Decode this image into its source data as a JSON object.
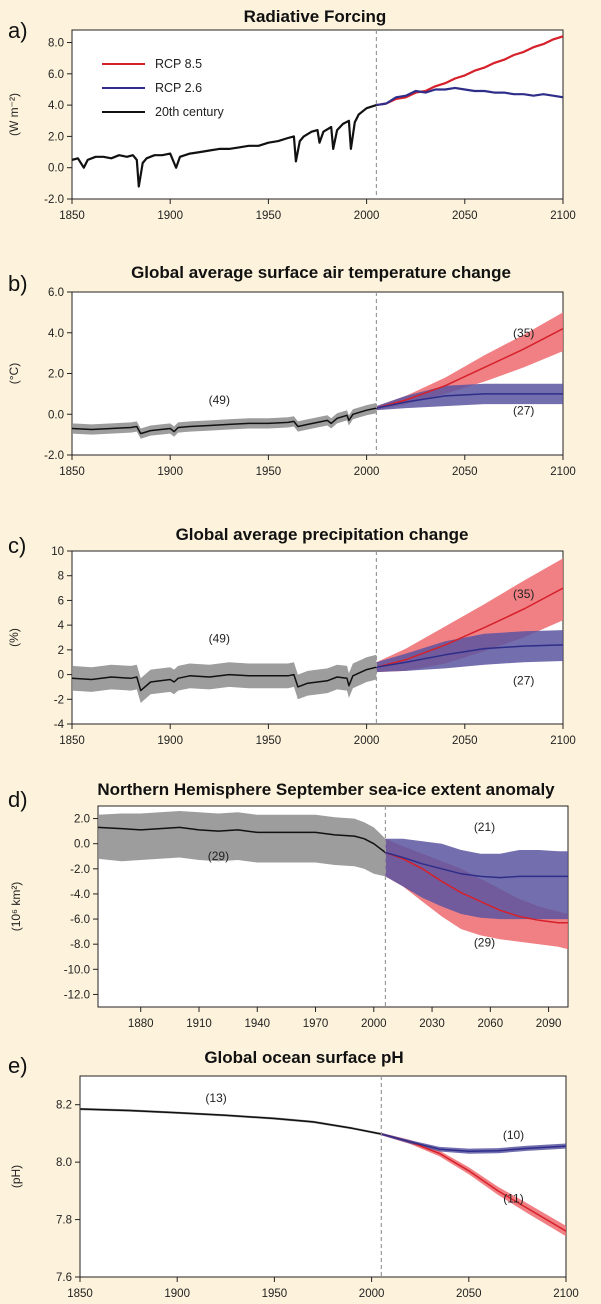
{
  "colors": {
    "background": "#fdf3dc",
    "historical_line": "#111111",
    "historical_band": "#8c8c8c",
    "rcp85_line": "#d6202a",
    "rcp85_band": "#ef6a6e",
    "rcp26_line": "#2e2e8a",
    "rcp26_band": "#5b55a0",
    "divider": "#9a9a9a",
    "plot_area": "#ffffff"
  },
  "legend": {
    "entries": [
      "RCP 8.5",
      "RCP 2.6",
      "20th century"
    ]
  },
  "chart_data": [
    {
      "panel": "a)",
      "type": "line",
      "title": "Radiative Forcing",
      "ylabel": "(W m⁻²)",
      "xlim": [
        1850,
        2100
      ],
      "ylim": [
        -2,
        8.8
      ],
      "xticks": [
        1850,
        1900,
        1950,
        2000,
        2050,
        2100
      ],
      "yticks": [
        -2.0,
        0.0,
        2.0,
        4.0,
        6.0,
        8.0
      ],
      "ytick_labels": [
        "-2.0",
        "0.0",
        "2.0",
        "4.0",
        "6.0",
        "8.0"
      ],
      "divider_x": 2005,
      "series": [
        {
          "key": "hist",
          "name": "20th century",
          "x": [
            1850,
            1853,
            1856,
            1858,
            1862,
            1866,
            1870,
            1874,
            1878,
            1881,
            1883,
            1884,
            1886,
            1888,
            1892,
            1896,
            1900,
            1902,
            1903,
            1905,
            1910,
            1915,
            1920,
            1925,
            1930,
            1935,
            1940,
            1945,
            1950,
            1955,
            1960,
            1963,
            1964,
            1966,
            1968,
            1972,
            1975,
            1976,
            1978,
            1982,
            1983,
            1985,
            1988,
            1991,
            1992,
            1994,
            1996,
            2000,
            2005
          ],
          "y": [
            0.5,
            0.6,
            0.0,
            0.5,
            0.7,
            0.7,
            0.6,
            0.8,
            0.7,
            0.8,
            0.5,
            -1.2,
            0.3,
            0.6,
            0.8,
            0.8,
            0.9,
            0.3,
            0.0,
            0.7,
            0.9,
            1.0,
            1.1,
            1.2,
            1.2,
            1.3,
            1.4,
            1.4,
            1.6,
            1.7,
            1.9,
            2.0,
            0.4,
            1.7,
            2.0,
            2.3,
            2.4,
            1.6,
            2.3,
            2.6,
            1.2,
            2.4,
            2.8,
            3.0,
            1.2,
            2.9,
            3.4,
            3.8,
            4.0
          ]
        },
        {
          "key": "rcp85",
          "name": "RCP 8.5",
          "x": [
            2005,
            2010,
            2015,
            2020,
            2025,
            2030,
            2035,
            2040,
            2045,
            2050,
            2055,
            2060,
            2065,
            2070,
            2075,
            2080,
            2085,
            2090,
            2095,
            2100
          ],
          "y": [
            4.0,
            4.1,
            4.4,
            4.5,
            4.8,
            4.9,
            5.2,
            5.4,
            5.7,
            5.9,
            6.2,
            6.4,
            6.7,
            6.9,
            7.2,
            7.4,
            7.7,
            7.9,
            8.2,
            8.4
          ]
        },
        {
          "key": "rcp26",
          "name": "RCP 2.6",
          "x": [
            2005,
            2010,
            2015,
            2020,
            2025,
            2030,
            2035,
            2040,
            2045,
            2050,
            2055,
            2060,
            2065,
            2070,
            2075,
            2080,
            2085,
            2090,
            2095,
            2100
          ],
          "y": [
            4.0,
            4.1,
            4.5,
            4.6,
            4.9,
            4.8,
            5.0,
            5.0,
            5.1,
            5.0,
            4.9,
            4.9,
            4.8,
            4.8,
            4.7,
            4.7,
            4.6,
            4.7,
            4.6,
            4.5
          ]
        }
      ]
    },
    {
      "panel": "b)",
      "type": "line",
      "title": "Global average surface air temperature change",
      "ylabel": "(°C)",
      "xlim": [
        1850,
        2100
      ],
      "ylim": [
        -2,
        6
      ],
      "xticks": [
        1850,
        1900,
        1950,
        2000,
        2050,
        2100
      ],
      "yticks": [
        -2.0,
        0.0,
        2.0,
        4.0,
        6.0
      ],
      "ytick_labels": [
        "-2.0",
        "0.0",
        "2.0",
        "4.0",
        "6.0"
      ],
      "divider_x": 2005,
      "annotations": [
        {
          "text": "(49)",
          "x": 1925,
          "y": 0.5
        },
        {
          "text": "(35)",
          "x": 2080,
          "y": 3.8
        },
        {
          "text": "(27)",
          "x": 2080,
          "y": 0.0
        }
      ],
      "series": [
        {
          "key": "hist",
          "name": "20th century",
          "band": 0.25,
          "x": [
            1850,
            1860,
            1870,
            1880,
            1883,
            1885,
            1890,
            1900,
            1902,
            1904,
            1910,
            1920,
            1930,
            1940,
            1950,
            1960,
            1963,
            1965,
            1970,
            1975,
            1980,
            1982,
            1985,
            1990,
            1991,
            1993,
            2000,
            2005
          ],
          "y": [
            -0.7,
            -0.75,
            -0.7,
            -0.65,
            -0.6,
            -0.95,
            -0.8,
            -0.7,
            -0.85,
            -0.65,
            -0.6,
            -0.55,
            -0.5,
            -0.45,
            -0.45,
            -0.4,
            -0.35,
            -0.6,
            -0.5,
            -0.4,
            -0.3,
            -0.45,
            -0.2,
            -0.05,
            -0.3,
            0.0,
            0.2,
            0.3
          ]
        },
        {
          "key": "rcp85",
          "name": "RCP 8.5",
          "x": [
            2005,
            2020,
            2040,
            2060,
            2080,
            2100
          ],
          "y": [
            0.3,
            0.7,
            1.4,
            2.3,
            3.2,
            4.2
          ],
          "band_lo": [
            0.2,
            0.5,
            1.0,
            1.6,
            2.3,
            3.1
          ],
          "band_hi": [
            0.4,
            0.9,
            1.8,
            2.9,
            3.9,
            5.0
          ]
        },
        {
          "key": "rcp26",
          "name": "RCP 2.6",
          "x": [
            2005,
            2020,
            2040,
            2060,
            2080,
            2100
          ],
          "y": [
            0.3,
            0.6,
            0.9,
            1.0,
            1.0,
            1.0
          ],
          "band_lo": [
            0.2,
            0.3,
            0.4,
            0.5,
            0.5,
            0.5
          ],
          "band_hi": [
            0.4,
            0.9,
            1.4,
            1.5,
            1.5,
            1.5
          ]
        }
      ]
    },
    {
      "panel": "c)",
      "type": "line",
      "title": "Global average precipitation change",
      "ylabel": "(%)",
      "xlim": [
        1850,
        2100
      ],
      "ylim": [
        -4,
        10
      ],
      "xticks": [
        1850,
        1900,
        1950,
        2000,
        2050,
        2100
      ],
      "yticks": [
        -4,
        -2,
        0,
        2,
        4,
        6,
        8,
        10
      ],
      "ytick_labels": [
        "-4",
        "-2",
        "0",
        "2",
        "4",
        "6",
        "8",
        "10"
      ],
      "divider_x": 2005,
      "annotations": [
        {
          "text": "(49)",
          "x": 1925,
          "y": 2.6
        },
        {
          "text": "(35)",
          "x": 2080,
          "y": 6.2
        },
        {
          "text": "(27)",
          "x": 2080,
          "y": -0.8
        }
      ],
      "series": [
        {
          "key": "hist",
          "name": "20th century",
          "band": 1.0,
          "x": [
            1850,
            1860,
            1870,
            1880,
            1883,
            1885,
            1890,
            1900,
            1902,
            1904,
            1910,
            1920,
            1930,
            1940,
            1950,
            1960,
            1963,
            1965,
            1970,
            1980,
            1985,
            1990,
            1991,
            1993,
            2000,
            2005
          ],
          "y": [
            -0.3,
            -0.4,
            -0.2,
            -0.3,
            -0.2,
            -1.3,
            -0.6,
            -0.4,
            -0.6,
            -0.3,
            -0.1,
            -0.2,
            0.0,
            -0.1,
            -0.1,
            -0.1,
            0.0,
            -1.0,
            -0.7,
            -0.5,
            -0.2,
            -0.3,
            -0.9,
            -0.1,
            0.4,
            0.6
          ]
        },
        {
          "key": "rcp85",
          "name": "RCP 8.5",
          "x": [
            2005,
            2020,
            2040,
            2060,
            2080,
            2100
          ],
          "y": [
            0.6,
            1.2,
            2.4,
            3.8,
            5.3,
            7.0
          ],
          "band_lo": [
            0.2,
            0.3,
            0.9,
            1.9,
            3.0,
            4.4
          ],
          "band_hi": [
            1.0,
            2.1,
            3.9,
            5.7,
            7.6,
            9.4
          ]
        },
        {
          "key": "rcp26",
          "name": "RCP 2.6",
          "x": [
            2005,
            2020,
            2040,
            2060,
            2080,
            2100
          ],
          "y": [
            0.6,
            1.0,
            1.6,
            2.1,
            2.3,
            2.4
          ],
          "band_lo": [
            0.2,
            0.3,
            0.5,
            0.8,
            1.0,
            1.1
          ],
          "band_hi": [
            1.0,
            1.7,
            2.7,
            3.3,
            3.5,
            3.6
          ]
        }
      ]
    },
    {
      "panel": "d)",
      "type": "line",
      "title": "Northern Hemisphere September sea-ice extent anomaly",
      "ylabel": "(10⁶ km²)",
      "xlim": [
        1858,
        2100
      ],
      "ylim": [
        -13,
        3
      ],
      "xticks": [
        1880,
        1910,
        1940,
        1970,
        2000,
        2030,
        2060,
        2090
      ],
      "yticks": [
        -12,
        -10,
        -8,
        -6,
        -4,
        -2,
        0,
        2
      ],
      "ytick_labels": [
        "-12.0",
        "-10.0",
        "-8.0",
        "-6.0",
        "-4.0",
        "-2.0",
        "0.0",
        "2.0"
      ],
      "divider_x": 2006,
      "annotations": [
        {
          "text": "(29)",
          "x": 1920,
          "y": -1.3
        },
        {
          "text": "(21)",
          "x": 2057,
          "y": 1.0
        },
        {
          "text": "(29)",
          "x": 2057,
          "y": -8.2
        }
      ],
      "series": [
        {
          "key": "hist",
          "name": "20th century",
          "x": [
            1858,
            1870,
            1880,
            1890,
            1900,
            1910,
            1920,
            1930,
            1940,
            1950,
            1960,
            1970,
            1980,
            1990,
            1995,
            2000,
            2006
          ],
          "y": [
            1.3,
            1.2,
            1.1,
            1.2,
            1.3,
            1.1,
            1.0,
            1.1,
            0.9,
            0.9,
            0.9,
            0.9,
            0.7,
            0.6,
            0.4,
            0.0,
            -0.7
          ],
          "band_lo": [
            -1.2,
            -1.4,
            -1.3,
            -1.2,
            -1.1,
            -1.3,
            -1.4,
            -1.3,
            -1.5,
            -1.5,
            -1.5,
            -1.5,
            -1.7,
            -1.8,
            -2.0,
            -2.4,
            -2.6
          ],
          "band_hi": [
            2.3,
            2.4,
            2.4,
            2.5,
            2.6,
            2.5,
            2.4,
            2.5,
            2.3,
            2.3,
            2.3,
            2.3,
            2.1,
            2.0,
            1.7,
            1.3,
            0.4
          ]
        },
        {
          "key": "rcp85",
          "name": "RCP 8.5",
          "x": [
            2006,
            2015,
            2025,
            2035,
            2045,
            2055,
            2065,
            2075,
            2085,
            2095,
            2100
          ],
          "y": [
            -0.7,
            -1.2,
            -2.0,
            -3.0,
            -3.9,
            -4.6,
            -5.3,
            -5.8,
            -6.1,
            -6.3,
            -6.3
          ],
          "band_lo": [
            -2.6,
            -3.4,
            -4.6,
            -5.8,
            -6.8,
            -7.3,
            -7.6,
            -7.8,
            -8.0,
            -8.2,
            -8.4
          ],
          "band_hi": [
            0.4,
            -0.2,
            -0.8,
            -1.4,
            -2.0,
            -2.8,
            -3.6,
            -4.4,
            -5.0,
            -5.4,
            -5.6
          ]
        },
        {
          "key": "rcp26",
          "name": "RCP 2.6",
          "x": [
            2006,
            2015,
            2025,
            2035,
            2045,
            2055,
            2065,
            2075,
            2085,
            2095,
            2100
          ],
          "y": [
            -0.7,
            -1.1,
            -1.6,
            -2.0,
            -2.4,
            -2.6,
            -2.7,
            -2.6,
            -2.6,
            -2.6,
            -2.6
          ],
          "band_lo": [
            -2.6,
            -3.4,
            -4.3,
            -5.0,
            -5.6,
            -5.9,
            -6.0,
            -6.0,
            -6.0,
            -6.0,
            -6.0
          ],
          "band_hi": [
            0.4,
            0.4,
            0.2,
            0.0,
            -0.5,
            -0.8,
            -0.8,
            -0.5,
            -0.5,
            -0.6,
            -0.6
          ]
        }
      ]
    },
    {
      "panel": "e)",
      "type": "line",
      "title": "Global ocean surface pH",
      "ylabel": "(pH)",
      "xlim": [
        1850,
        2100
      ],
      "ylim": [
        7.6,
        8.3
      ],
      "xticks": [
        1850,
        1900,
        1950,
        2000,
        2050,
        2100
      ],
      "yticks": [
        7.6,
        7.8,
        8.0,
        8.2
      ],
      "ytick_labels": [
        "7.6",
        "7.8",
        "8.0",
        "8.2"
      ],
      "divider_x": 2005,
      "annotations": [
        {
          "text": "(13)",
          "x": 1920,
          "y": 8.21
        },
        {
          "text": "(10)",
          "x": 2073,
          "y": 8.08
        },
        {
          "text": "(11)",
          "x": 2073,
          "y": 7.86
        }
      ],
      "series": [
        {
          "key": "hist",
          "name": "20th century",
          "band": 0.004,
          "x": [
            1850,
            1875,
            1900,
            1925,
            1950,
            1970,
            1990,
            2005
          ],
          "y": [
            8.185,
            8.18,
            8.172,
            8.163,
            8.152,
            8.14,
            8.118,
            8.098
          ]
        },
        {
          "key": "rcp85",
          "name": "RCP 8.5",
          "x": [
            2005,
            2020,
            2035,
            2050,
            2065,
            2080,
            2100
          ],
          "y": [
            8.098,
            8.07,
            8.03,
            7.97,
            7.9,
            7.84,
            7.76
          ],
          "band_lo": [
            8.094,
            8.063,
            8.02,
            7.958,
            7.886,
            7.823,
            7.742
          ],
          "band_hi": [
            8.102,
            8.077,
            8.04,
            7.982,
            7.914,
            7.857,
            7.778
          ]
        },
        {
          "key": "rcp26",
          "name": "RCP 2.6",
          "x": [
            2005,
            2020,
            2035,
            2050,
            2065,
            2080,
            2100
          ],
          "y": [
            8.098,
            8.07,
            8.045,
            8.038,
            8.04,
            8.048,
            8.056
          ],
          "band_lo": [
            8.094,
            8.064,
            8.037,
            8.029,
            8.031,
            8.039,
            8.047
          ],
          "band_hi": [
            8.102,
            8.076,
            8.053,
            8.047,
            8.049,
            8.057,
            8.065
          ]
        }
      ]
    }
  ]
}
